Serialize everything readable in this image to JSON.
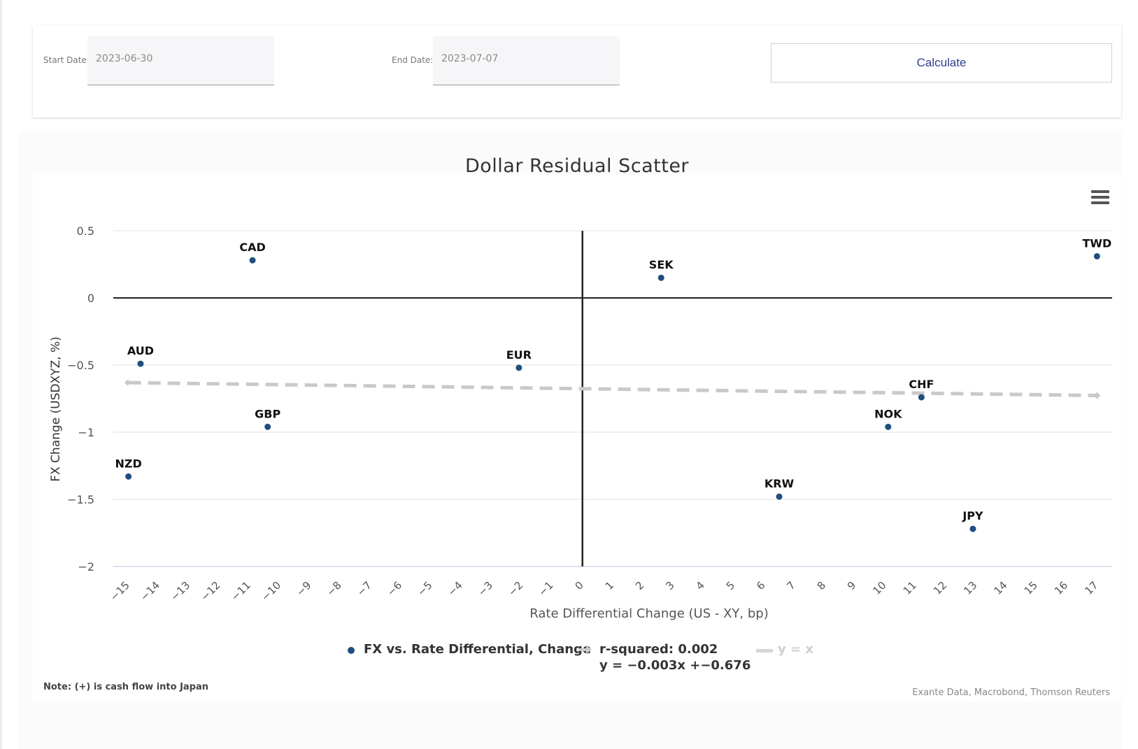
{
  "form": {
    "start_label": "Start Date:",
    "start_value": "2023-06-30",
    "end_label": "End Date:",
    "end_value": "2023-07-07",
    "calculate_label": "Calculate"
  },
  "chart_menu_icon": "hamburger-menu-icon",
  "chart_data": {
    "type": "scatter",
    "title": "Dollar Residual Scatter",
    "xlabel": "Rate Differential Change (US - XY, bp)",
    "ylabel": "FX Change (USDXYZ, %)",
    "xlim": [
      -15.5,
      17.5
    ],
    "ylim": [
      -2,
      0.5
    ],
    "x_ticks": [
      -15,
      -14,
      -13,
      -12,
      -11,
      -10,
      -9,
      -8,
      -7,
      -6,
      -5,
      -4,
      -3,
      -2,
      -1,
      0,
      1,
      2,
      3,
      4,
      5,
      6,
      7,
      8,
      9,
      10,
      11,
      12,
      13,
      14,
      15,
      16,
      17
    ],
    "y_ticks": [
      {
        "value": 0.5,
        "label": "0.5"
      },
      {
        "value": 0,
        "label": "0"
      },
      {
        "value": -0.5,
        "label": "−0.5"
      },
      {
        "value": -1,
        "label": "−1"
      },
      {
        "value": -1.5,
        "label": "−1.5"
      },
      {
        "value": -2,
        "label": "−2"
      }
    ],
    "grid": true,
    "legend_position": "bottom",
    "series": [
      {
        "name": "FX vs. Rate Differential, Change",
        "color": "#1f4e7f",
        "points": [
          {
            "label": "CAD",
            "x": -10.9,
            "y": 0.28
          },
          {
            "label": "SEK",
            "x": 2.6,
            "y": 0.15
          },
          {
            "label": "TWD",
            "x": 17.0,
            "y": 0.31
          },
          {
            "label": "AUD",
            "x": -14.6,
            "y": -0.49
          },
          {
            "label": "EUR",
            "x": -2.1,
            "y": -0.52
          },
          {
            "label": "CHF",
            "x": 11.2,
            "y": -0.74
          },
          {
            "label": "GBP",
            "x": -10.4,
            "y": -0.96
          },
          {
            "label": "NOK",
            "x": 10.1,
            "y": -0.96
          },
          {
            "label": "NZD",
            "x": -15.0,
            "y": -1.33
          },
          {
            "label": "KRW",
            "x": 6.5,
            "y": -1.48
          },
          {
            "label": "JPY",
            "x": 12.9,
            "y": -1.72
          }
        ]
      },
      {
        "name": "r-squared: 0.002",
        "name_line2": "y = −0.003x +−0.676",
        "color": "#c9c9c9",
        "type": "regression",
        "slope": -0.003,
        "intercept": -0.676,
        "x_range": [
          -15.5,
          17
        ]
      },
      {
        "name": "y = x",
        "color": "#d6d6d6",
        "type": "reference",
        "hidden": true
      }
    ]
  },
  "note": "Note: (+) is cash flow into Japan",
  "credits": "Exante Data, Macrobond, Thomson Reuters"
}
